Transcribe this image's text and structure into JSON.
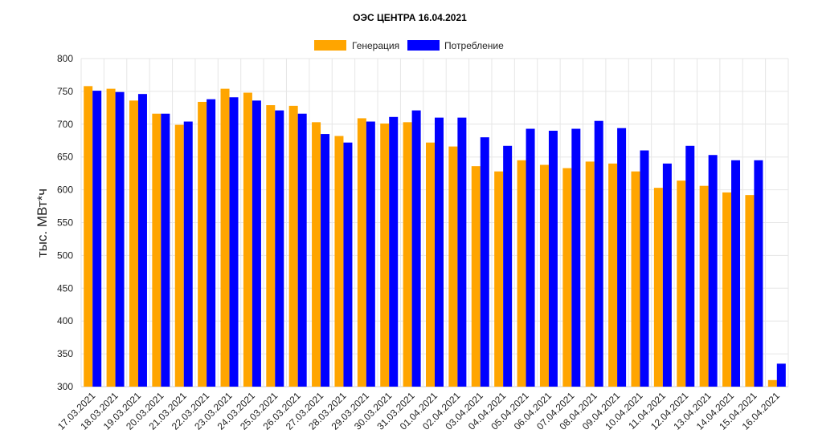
{
  "chart_data": {
    "type": "bar",
    "title": "ОЭС ЦЕНТРА 16.04.2021",
    "ylabel": "тыс. МВт*ч",
    "xlabel": "",
    "ylim": [
      300,
      800
    ],
    "yticks": [
      300,
      350,
      400,
      450,
      500,
      550,
      600,
      650,
      700,
      750,
      800
    ],
    "grid": true,
    "legend_position": "top-center",
    "categories": [
      "17.03.2021",
      "18.03.2021",
      "19.03.2021",
      "20.03.2021",
      "21.03.2021",
      "22.03.2021",
      "23.03.2021",
      "24.03.2021",
      "25.03.2021",
      "26.03.2021",
      "27.03.2021",
      "28.03.2021",
      "29.03.2021",
      "30.03.2021",
      "31.03.2021",
      "01.04.2021",
      "02.04.2021",
      "03.04.2021",
      "04.04.2021",
      "05.04.2021",
      "06.04.2021",
      "07.04.2021",
      "08.04.2021",
      "09.04.2021",
      "10.04.2021",
      "11.04.2021",
      "12.04.2021",
      "13.04.2021",
      "14.04.2021",
      "15.04.2021",
      "16.04.2021"
    ],
    "series": [
      {
        "name": "Генерация",
        "color": "#FFA500",
        "values": [
          758,
          754,
          736,
          716,
          699,
          734,
          754,
          748,
          729,
          728,
          703,
          682,
          709,
          701,
          703,
          672,
          666,
          636,
          628,
          645,
          638,
          633,
          643,
          640,
          628,
          603,
          614,
          606,
          596,
          592,
          310
        ]
      },
      {
        "name": "Потребление",
        "color": "#0000FF",
        "values": [
          751,
          749,
          746,
          716,
          704,
          738,
          741,
          736,
          721,
          716,
          685,
          672,
          704,
          711,
          721,
          710,
          710,
          680,
          667,
          693,
          690,
          693,
          705,
          694,
          660,
          640,
          667,
          653,
          645,
          645,
          335
        ]
      }
    ]
  }
}
